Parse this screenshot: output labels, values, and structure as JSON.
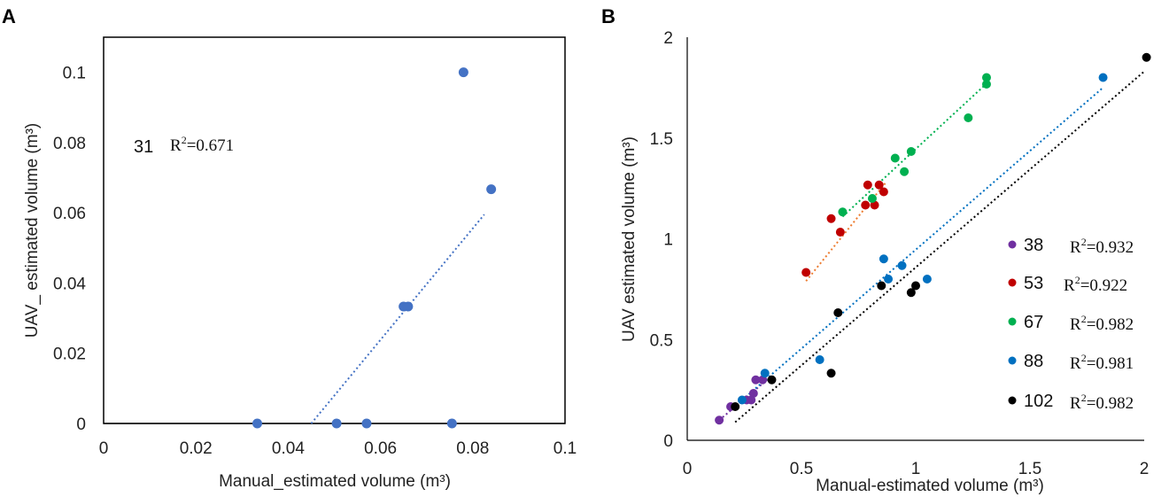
{
  "chart_data": [
    {
      "panel": "A",
      "type": "scatter",
      "xlabel": "Manual_estimated volume (m³)",
      "ylabel": "UAV_ estimated volume (m³)",
      "xlim": [
        0,
        0.1
      ],
      "ylim": [
        0,
        0.11
      ],
      "x_ticks": [
        "0",
        "0.02",
        "0.04",
        "0.06",
        "0.08",
        "0.1"
      ],
      "y_ticks": [
        "0",
        "0.02",
        "0.04",
        "0.06",
        "0.08",
        "0.1"
      ],
      "annotation": {
        "label": "31",
        "r2_prefix": "R",
        "r2_sup": "2",
        "r2_value": "=0.671"
      },
      "series": [
        {
          "name": "31",
          "color": "#4472c4",
          "points": [
            [
              0.0333,
              0
            ],
            [
              0.0505,
              0
            ],
            [
              0.057,
              0
            ],
            [
              0.0755,
              0
            ],
            [
              0.065,
              0.0333
            ],
            [
              0.066,
              0.0333
            ],
            [
              0.078,
              0.1
            ],
            [
              0.084,
              0.0667
            ]
          ],
          "trendline": [
            [
              0.045,
              0
            ],
            [
              0.0825,
              0.0595
            ]
          ],
          "trend_color": "#4472c4"
        }
      ]
    },
    {
      "panel": "B",
      "type": "scatter",
      "xlabel": "Manual-estimated volume (m³)",
      "ylabel": "UAV estimated volume (m³)",
      "xlim": [
        0,
        2
      ],
      "ylim": [
        0,
        2
      ],
      "x_ticks": [
        "0",
        "0.5",
        "1",
        "1.5",
        "2"
      ],
      "y_ticks": [
        "0",
        "0.5",
        "1",
        "1.5",
        "2"
      ],
      "series": [
        {
          "name": "38",
          "r2_prefix": "R",
          "r2_sup": "2",
          "r2_value": "=0.932",
          "color": "#7030a0",
          "points": [
            [
              0.14,
              0.1
            ],
            [
              0.19,
              0.167
            ],
            [
              0.26,
              0.2
            ],
            [
              0.28,
              0.2
            ],
            [
              0.29,
              0.233
            ],
            [
              0.3,
              0.3
            ],
            [
              0.33,
              0.3
            ]
          ],
          "trendline": [
            [
              0.14,
              0.1
            ],
            [
              0.35,
              0.3
            ]
          ],
          "trend_color": "#7030a0"
        },
        {
          "name": "53",
          "r2_prefix": "R",
          "r2_sup": "2",
          "r2_value": "=0.922",
          "color": "#c00000",
          "points": [
            [
              0.52,
              0.833
            ],
            [
              0.63,
              1.1
            ],
            [
              0.67,
              1.033
            ],
            [
              0.78,
              1.167
            ],
            [
              0.79,
              1.267
            ],
            [
              0.82,
              1.167
            ],
            [
              0.84,
              1.267
            ],
            [
              0.86,
              1.233
            ]
          ],
          "trendline": [
            [
              0.52,
              0.79
            ],
            [
              0.87,
              1.28
            ]
          ],
          "trend_color": "#ed7d31"
        },
        {
          "name": "67",
          "r2_prefix": "R",
          "r2_sup": "2",
          "r2_value": "=0.982",
          "color": "#00b050",
          "points": [
            [
              0.68,
              1.133
            ],
            [
              0.81,
              1.2
            ],
            [
              0.91,
              1.4
            ],
            [
              0.95,
              1.333
            ],
            [
              0.98,
              1.433
            ],
            [
              1.23,
              1.6
            ],
            [
              1.31,
              1.767
            ],
            [
              1.31,
              1.8
            ]
          ],
          "trendline": [
            [
              0.68,
              1.11
            ],
            [
              1.31,
              1.77
            ]
          ],
          "trend_color": "#00b050"
        },
        {
          "name": "88",
          "r2_prefix": "R",
          "r2_sup": "2",
          "r2_value": "=0.981",
          "color": "#0070c0",
          "points": [
            [
              0.24,
              0.2
            ],
            [
              0.34,
              0.333
            ],
            [
              0.58,
              0.4
            ],
            [
              0.86,
              0.9
            ],
            [
              0.88,
              0.8
            ],
            [
              0.94,
              0.867
            ],
            [
              1.05,
              0.8
            ],
            [
              1.82,
              1.8
            ]
          ],
          "trendline": [
            [
              0.24,
              0.2
            ],
            [
              1.82,
              1.75
            ]
          ],
          "trend_color": "#0070c0"
        },
        {
          "name": "102",
          "r2_prefix": "R",
          "r2_sup": "2",
          "r2_value": "=0.982",
          "color": "#000000",
          "points": [
            [
              0.21,
              0.167
            ],
            [
              0.37,
              0.3
            ],
            [
              0.63,
              0.333
            ],
            [
              0.66,
              0.633
            ],
            [
              0.85,
              0.767
            ],
            [
              0.98,
              0.733
            ],
            [
              1.0,
              0.767
            ],
            [
              2.01,
              1.9
            ]
          ],
          "trendline": [
            [
              0.21,
              0.09
            ],
            [
              2.0,
              1.83
            ]
          ],
          "trend_color": "#000000"
        }
      ]
    }
  ]
}
